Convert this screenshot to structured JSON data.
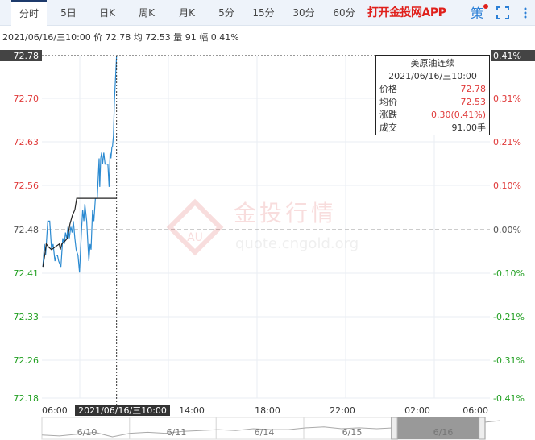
{
  "tabs": [
    {
      "label": "分时",
      "active": true
    },
    {
      "label": "5日"
    },
    {
      "label": "日K"
    },
    {
      "label": "周K"
    },
    {
      "label": "月K"
    },
    {
      "label": "5分"
    },
    {
      "label": "15分"
    },
    {
      "label": "30分"
    },
    {
      "label": "60分"
    }
  ],
  "header": {
    "app_link": "打开金投网APP",
    "strategy_label": "策",
    "icons": [
      "strategy-icon",
      "fullscreen-icon",
      "more-icon"
    ]
  },
  "info_bar": "2021/06/16/三10:00  价 72.78  均 72.53  量 91  幅 0.41%",
  "tooltip": {
    "title": "美原油连续",
    "datetime": "2021/06/16/三10:00",
    "rows": [
      {
        "label": "价格",
        "value": "72.78"
      },
      {
        "label": "均价",
        "value": "72.53"
      },
      {
        "label": "涨跌",
        "value": "0.30(0.41%)"
      },
      {
        "label": "成交",
        "value": "91.00手"
      }
    ]
  },
  "watermark": {
    "brand": "金投行情",
    "url": "quote.cngold.org",
    "logo": "AU"
  },
  "colors": {
    "up": "#e03a3a",
    "down": "#22a022",
    "neutral": "#555555",
    "price_line": "#2b8ad1",
    "avg_line": "#222222"
  },
  "chart_data": {
    "type": "line",
    "y_ticks": [
      "72.78",
      "72.70",
      "72.63",
      "72.56",
      "72.48",
      "72.41",
      "72.33",
      "72.26",
      "72.18"
    ],
    "pct_ticks": [
      "0.41%",
      "0.31%",
      "0.21%",
      "0.10%",
      "0.00%",
      "-0.10%",
      "-0.21%",
      "-0.31%",
      "-0.41%"
    ],
    "ylim": [
      72.18,
      72.78
    ],
    "prev_close": 72.48,
    "x_ticks": [
      "06:00",
      "14:00",
      "18:00",
      "22:00",
      "02:00",
      "06:00"
    ],
    "x_range": [
      "06:00",
      "06:00 +1"
    ],
    "crosshair": {
      "time": "10:00",
      "price": 72.78,
      "label": "2021/06/16/三10:00"
    },
    "series": [
      {
        "key": "price",
        "times": [
          "06:03",
          "06:08",
          "06:12",
          "06:19",
          "06:25",
          "06:31",
          "06:36",
          "06:42",
          "06:46",
          "06:50",
          "06:54",
          "07:01",
          "07:07",
          "07:12",
          "07:16",
          "07:20",
          "07:24",
          "07:28",
          "07:33",
          "07:37",
          "07:41",
          "07:46",
          "07:50",
          "07:56",
          "08:01",
          "08:07",
          "08:11",
          "08:15",
          "08:18",
          "08:24",
          "08:28",
          "08:31",
          "08:35",
          "08:38",
          "08:43",
          "08:47",
          "08:52",
          "08:58",
          "09:04",
          "09:06",
          "09:09",
          "09:12",
          "09:15",
          "09:19",
          "09:23",
          "09:28",
          "09:32",
          "09:36",
          "09:39",
          "09:42",
          "09:45",
          "09:47",
          "09:50",
          "09:53",
          "10:00"
        ],
        "values": [
          72.41,
          72.45,
          72.43,
          72.49,
          72.49,
          72.44,
          72.45,
          72.42,
          72.43,
          72.43,
          72.42,
          72.41,
          72.46,
          72.45,
          72.47,
          72.46,
          72.48,
          72.46,
          72.48,
          72.47,
          72.49,
          72.46,
          72.44,
          72.43,
          72.4,
          72.47,
          72.51,
          72.49,
          72.52,
          72.49,
          72.45,
          72.42,
          72.45,
          72.44,
          72.51,
          72.49,
          72.53,
          72.53,
          72.6,
          72.55,
          72.6,
          72.61,
          72.59,
          72.61,
          72.59,
          72.59,
          72.59,
          72.55,
          72.61,
          72.6,
          72.62,
          72.62,
          72.64,
          72.7,
          72.78
        ]
      },
      {
        "key": "average",
        "times": [
          "06:03",
          "06:09",
          "06:14",
          "06:21",
          "06:31",
          "06:43",
          "06:56",
          "06:59",
          "07:04",
          "07:14",
          "07:22",
          "07:30",
          "07:38",
          "07:46",
          "07:52",
          "10:00"
        ],
        "values": [
          72.41,
          72.43,
          72.45,
          72.445,
          72.44,
          72.445,
          72.45,
          72.44,
          72.45,
          72.455,
          72.46,
          72.485,
          72.5,
          72.51,
          72.53,
          72.53
        ]
      }
    ]
  },
  "navigator": {
    "labels": [
      "6/10",
      "6/11",
      "6/14",
      "6/15",
      "6/16"
    ],
    "values": [
      72.0,
      71.9,
      72.1,
      72.3,
      71.8,
      72.2,
      72.3,
      72.2,
      72.4,
      72.5,
      72.6,
      72.5,
      72.7,
      72.6,
      72.6,
      72.8,
      72.9,
      72.7,
      72.8,
      72.7,
      72.8,
      72.7,
      72.9,
      73.0,
      73.2,
      73.4,
      73.6
    ]
  }
}
